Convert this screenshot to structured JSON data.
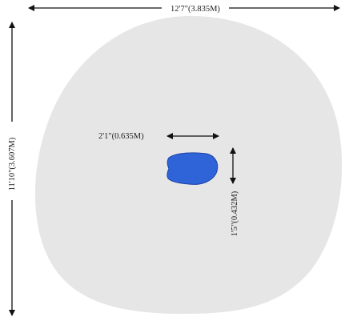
{
  "diagram": {
    "room_shape": "oval",
    "object_shape": "rounded-blob",
    "dimensions": {
      "room_width": "12'7\"(3.835M)",
      "room_depth": "11'10\"(3.607M)",
      "object_width": "2'1\"(0.635M)",
      "object_depth": "1'5\"(0.432M)"
    },
    "colors": {
      "room_fill": "#e6e6e6",
      "object_fill": "#2f63d8",
      "object_stroke": "#1d44a6",
      "arrow": "#111111",
      "text": "#222222"
    }
  }
}
